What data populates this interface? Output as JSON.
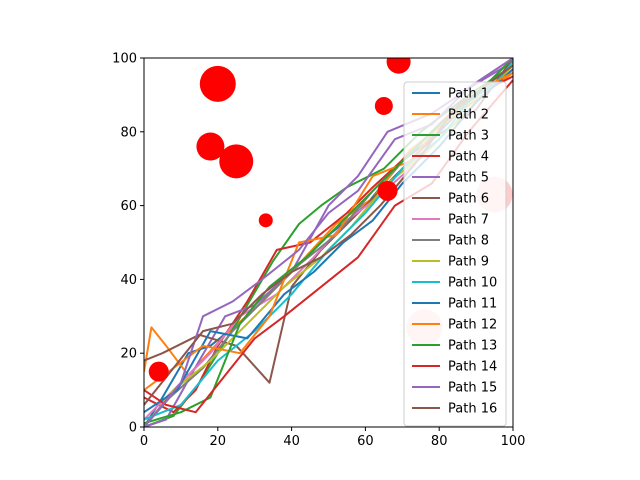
{
  "chart_data": {
    "type": "line",
    "title": "",
    "xlabel": "",
    "ylabel": "",
    "xlim": [
      0,
      100
    ],
    "ylim": [
      0,
      100
    ],
    "xticks": [
      0,
      20,
      40,
      60,
      80,
      100
    ],
    "yticks": [
      0,
      20,
      40,
      60,
      80,
      100
    ],
    "grid": false,
    "legend_position": "right",
    "series": [
      {
        "name": "Path 1",
        "color": "#1f77b4",
        "points": [
          [
            0,
            0
          ],
          [
            5,
            8
          ],
          [
            12,
            20
          ],
          [
            18,
            22
          ],
          [
            28,
            30
          ],
          [
            38,
            40
          ],
          [
            50,
            52
          ],
          [
            60,
            60
          ],
          [
            70,
            72
          ],
          [
            80,
            80
          ],
          [
            90,
            90
          ],
          [
            100,
            100
          ]
        ]
      },
      {
        "name": "Path 2",
        "color": "#ff7f0e",
        "points": [
          [
            0,
            15
          ],
          [
            2,
            27
          ],
          [
            6,
            22
          ],
          [
            12,
            14
          ],
          [
            22,
            25
          ],
          [
            30,
            32
          ],
          [
            40,
            42
          ],
          [
            52,
            55
          ],
          [
            62,
            62
          ],
          [
            72,
            75
          ],
          [
            85,
            85
          ],
          [
            100,
            96
          ]
        ]
      },
      {
        "name": "Path 3",
        "color": "#2ca02c",
        "points": [
          [
            0,
            0
          ],
          [
            8,
            3
          ],
          [
            15,
            12
          ],
          [
            25,
            28
          ],
          [
            35,
            45
          ],
          [
            42,
            55
          ],
          [
            48,
            60
          ],
          [
            55,
            65
          ],
          [
            65,
            70
          ],
          [
            75,
            80
          ],
          [
            88,
            90
          ],
          [
            100,
            98
          ]
        ]
      },
      {
        "name": "Path 4",
        "color": "#d62728",
        "points": [
          [
            0,
            8
          ],
          [
            8,
            4
          ],
          [
            14,
            10
          ],
          [
            20,
            22
          ],
          [
            28,
            34
          ],
          [
            36,
            48
          ],
          [
            45,
            50
          ],
          [
            55,
            58
          ],
          [
            62,
            65
          ],
          [
            74,
            76
          ],
          [
            86,
            88
          ],
          [
            100,
            95
          ]
        ]
      },
      {
        "name": "Path 5",
        "color": "#9467bd",
        "points": [
          [
            0,
            0
          ],
          [
            6,
            2
          ],
          [
            15,
            18
          ],
          [
            22,
            30
          ],
          [
            30,
            33
          ],
          [
            40,
            42
          ],
          [
            50,
            60
          ],
          [
            58,
            68
          ],
          [
            66,
            80
          ],
          [
            78,
            85
          ],
          [
            90,
            93
          ],
          [
            100,
            99
          ]
        ]
      },
      {
        "name": "Path 6",
        "color": "#8c564b",
        "points": [
          [
            0,
            18
          ],
          [
            5,
            20
          ],
          [
            15,
            25
          ],
          [
            25,
            22
          ],
          [
            34,
            12
          ],
          [
            40,
            38
          ],
          [
            48,
            48
          ],
          [
            58,
            58
          ],
          [
            68,
            68
          ],
          [
            78,
            78
          ],
          [
            90,
            86
          ],
          [
            100,
            100
          ]
        ]
      },
      {
        "name": "Path 7",
        "color": "#e377c2",
        "points": [
          [
            0,
            2
          ],
          [
            10,
            12
          ],
          [
            18,
            20
          ],
          [
            26,
            30
          ],
          [
            36,
            36
          ],
          [
            46,
            46
          ],
          [
            55,
            56
          ],
          [
            63,
            62
          ],
          [
            72,
            70
          ],
          [
            82,
            80
          ],
          [
            92,
            90
          ],
          [
            100,
            97
          ]
        ]
      },
      {
        "name": "Path 8",
        "color": "#7f7f7f",
        "points": [
          [
            0,
            0
          ],
          [
            7,
            8
          ],
          [
            16,
            16
          ],
          [
            24,
            26
          ],
          [
            34,
            36
          ],
          [
            42,
            44
          ],
          [
            52,
            52
          ],
          [
            62,
            64
          ],
          [
            72,
            74
          ],
          [
            82,
            84
          ],
          [
            92,
            92
          ],
          [
            100,
            100
          ]
        ]
      },
      {
        "name": "Path 9",
        "color": "#bcbd22",
        "points": [
          [
            0,
            0
          ],
          [
            8,
            10
          ],
          [
            18,
            18
          ],
          [
            28,
            28
          ],
          [
            38,
            38
          ],
          [
            48,
            46
          ],
          [
            56,
            54
          ],
          [
            66,
            66
          ],
          [
            76,
            74
          ],
          [
            86,
            84
          ],
          [
            94,
            92
          ],
          [
            100,
            98
          ]
        ]
      },
      {
        "name": "Path 10",
        "color": "#17becf",
        "points": [
          [
            0,
            2
          ],
          [
            10,
            6
          ],
          [
            20,
            18
          ],
          [
            30,
            26
          ],
          [
            40,
            36
          ],
          [
            50,
            48
          ],
          [
            60,
            58
          ],
          [
            70,
            70
          ],
          [
            80,
            78
          ],
          [
            88,
            88
          ],
          [
            96,
            94
          ],
          [
            100,
            99
          ]
        ]
      },
      {
        "name": "Path 11",
        "color": "#1f77b4",
        "points": [
          [
            0,
            4
          ],
          [
            9,
            10
          ],
          [
            18,
            26
          ],
          [
            28,
            24
          ],
          [
            38,
            36
          ],
          [
            46,
            42
          ],
          [
            54,
            50
          ],
          [
            62,
            56
          ],
          [
            70,
            66
          ],
          [
            80,
            76
          ],
          [
            90,
            88
          ],
          [
            100,
            97
          ]
        ]
      },
      {
        "name": "Path 12",
        "color": "#ff7f0e",
        "points": [
          [
            0,
            10
          ],
          [
            8,
            16
          ],
          [
            16,
            22
          ],
          [
            26,
            20
          ],
          [
            34,
            30
          ],
          [
            42,
            50
          ],
          [
            52,
            52
          ],
          [
            62,
            68
          ],
          [
            72,
            72
          ],
          [
            82,
            84
          ],
          [
            92,
            92
          ],
          [
            100,
            96
          ]
        ]
      },
      {
        "name": "Path 13",
        "color": "#2ca02c",
        "points": [
          [
            0,
            1
          ],
          [
            10,
            4
          ],
          [
            18,
            8
          ],
          [
            26,
            28
          ],
          [
            34,
            38
          ],
          [
            44,
            46
          ],
          [
            52,
            54
          ],
          [
            60,
            62
          ],
          [
            70,
            72
          ],
          [
            80,
            82
          ],
          [
            90,
            90
          ],
          [
            100,
            100
          ]
        ]
      },
      {
        "name": "Path 14",
        "color": "#d62728",
        "points": [
          [
            0,
            10
          ],
          [
            6,
            6
          ],
          [
            14,
            4
          ],
          [
            22,
            14
          ],
          [
            30,
            24
          ],
          [
            38,
            30
          ],
          [
            48,
            38
          ],
          [
            58,
            46
          ],
          [
            68,
            60
          ],
          [
            78,
            66
          ],
          [
            88,
            80
          ],
          [
            100,
            94
          ]
        ]
      },
      {
        "name": "Path 15",
        "color": "#9467bd",
        "points": [
          [
            0,
            0
          ],
          [
            10,
            12
          ],
          [
            16,
            30
          ],
          [
            24,
            34
          ],
          [
            32,
            40
          ],
          [
            42,
            48
          ],
          [
            50,
            58
          ],
          [
            58,
            64
          ],
          [
            68,
            78
          ],
          [
            78,
            82
          ],
          [
            88,
            92
          ],
          [
            100,
            100
          ]
        ]
      },
      {
        "name": "Path 16",
        "color": "#8c564b",
        "points": [
          [
            0,
            6
          ],
          [
            8,
            16
          ],
          [
            16,
            26
          ],
          [
            24,
            28
          ],
          [
            32,
            36
          ],
          [
            40,
            42
          ],
          [
            48,
            46
          ],
          [
            56,
            52
          ],
          [
            64,
            60
          ],
          [
            74,
            72
          ],
          [
            84,
            86
          ],
          [
            100,
            98
          ]
        ]
      }
    ],
    "scatter": {
      "color": "#ff0000",
      "points": [
        {
          "x": 20,
          "y": 93,
          "size": 18
        },
        {
          "x": 18,
          "y": 76,
          "size": 14
        },
        {
          "x": 25,
          "y": 72,
          "size": 17
        },
        {
          "x": 33,
          "y": 56,
          "size": 7
        },
        {
          "x": 69,
          "y": 99,
          "size": 12
        },
        {
          "x": 65,
          "y": 87,
          "size": 9
        },
        {
          "x": 66,
          "y": 64,
          "size": 10
        },
        {
          "x": 4,
          "y": 15,
          "size": 10
        },
        {
          "x": 95,
          "y": 63,
          "size": 18,
          "alpha": 0.2
        },
        {
          "x": 76,
          "y": 27,
          "size": 18,
          "alpha": 0.2
        }
      ]
    }
  }
}
